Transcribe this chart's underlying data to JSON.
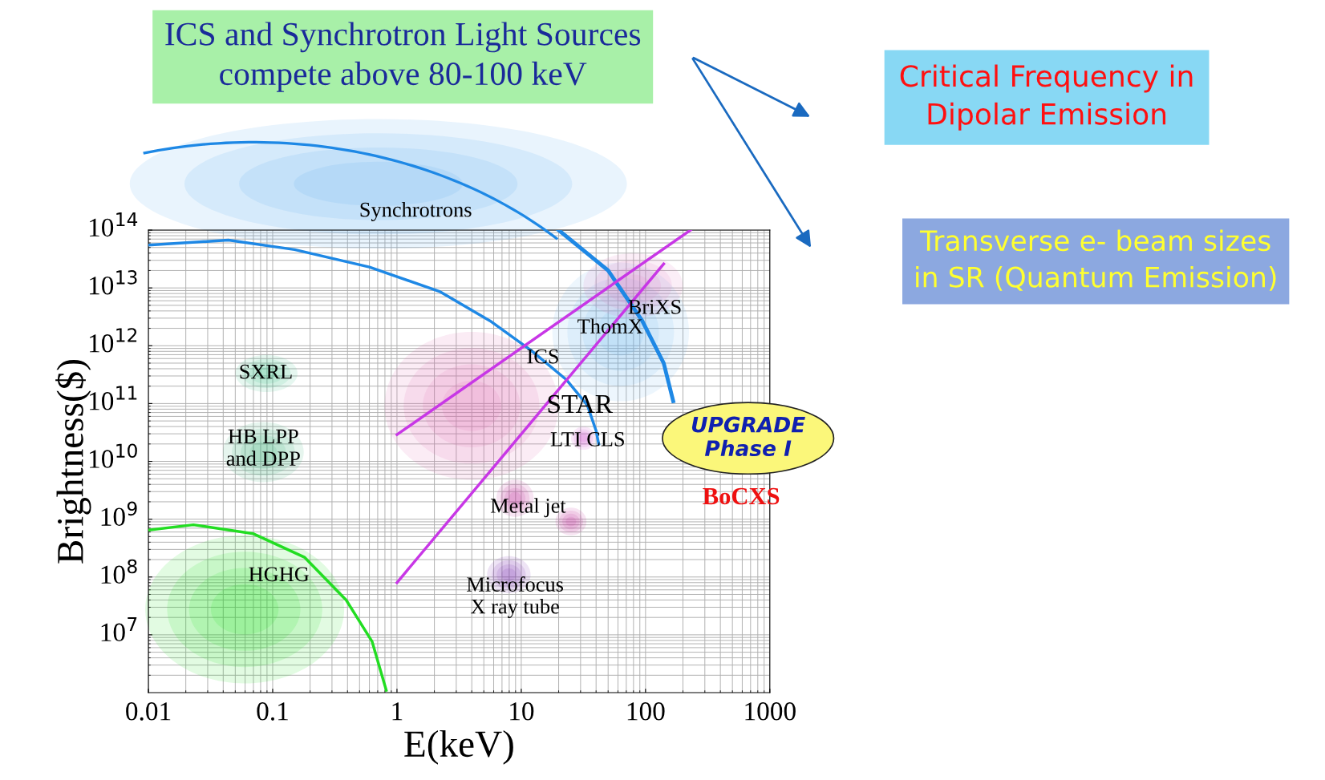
{
  "chart_data": {
    "type": "line",
    "title": "ICS and Synchrotron Light Sources\ncompete above 80-100 keV",
    "xlabel": "E(keV)",
    "ylabel": "Brightness($)",
    "log": "xy",
    "xlim": [
      0.01,
      1000
    ],
    "ylim": [
      1000000,
      100000000000000
    ],
    "xticks": [
      0.01,
      0.1,
      1,
      10,
      100,
      1000
    ],
    "yticks": [
      {
        "value": 10000000,
        "label": "10$^{7}$"
      },
      {
        "value": 100000000,
        "label": "10$^{8}$"
      },
      {
        "value": 1000000000,
        "label": "10$^{9}$"
      },
      {
        "value": 10000000000,
        "label": "10$^{10}$"
      },
      {
        "value": 100000000000,
        "label": "10$^{11}$"
      },
      {
        "value": 1000000000000,
        "label": "10$^{12}$"
      },
      {
        "value": 10000000000000,
        "label": "10$^{13}$"
      },
      {
        "value": 100000000000000,
        "label": "10$^{14}$"
      }
    ],
    "grid": true,
    "marker": "none",
    "line_style": "solid",
    "series": [
      {
        "color": "#1e88e5",
        "x": [
          0.01,
          0.044,
          0.15,
          0.6,
          2.2,
          5.6,
          12,
          23,
          34,
          40,
          42
        ],
        "values": [
          55000000000000,
          67000000000000,
          46000000000000,
          23000000000000,
          8700000000000,
          2700000000000,
          830000000000,
          260000000000,
          94000000000,
          34000000000,
          20000000000
        ]
      },
      {
        "color": "#1e88e5",
        "x": [
          20,
          50,
          94,
          140,
          167
        ],
        "values": [
          100000000000000,
          20000000000000,
          2700000000000,
          500000000000,
          110000000000
        ]
      },
      {
        "color": "#c837e6",
        "x": [
          1,
          230
        ],
        "values": [
          29000000000,
          100000000000000
        ]
      },
      {
        "color": "#c837e6",
        "x": [
          1,
          140
        ],
        "values": [
          80000000,
          26000000000000
        ]
      },
      {
        "color": "#22dd22",
        "x": [
          0.01,
          0.023,
          0.07,
          0.18,
          0.39,
          0.63,
          0.82
        ],
        "values": [
          650000000,
          800000000,
          560000000,
          220000000,
          40000000,
          7700000,
          1100000
        ]
      }
    ],
    "annotations": [
      "Synchrotrons",
      "Critical Frequency in\nDipolar Emission",
      "Transverse e- beam sizes\nin SR (Quantum Emission)",
      "BriXS",
      "ThomX",
      "ICS",
      "SXRL",
      "STAR",
      "HB LPP\nand DPP",
      "LTI CLS",
      "Metal jet",
      "HGHG",
      "Microfocus\nX ray tube",
      "UPGRADE\nPhase I",
      "BoCXS"
    ]
  }
}
